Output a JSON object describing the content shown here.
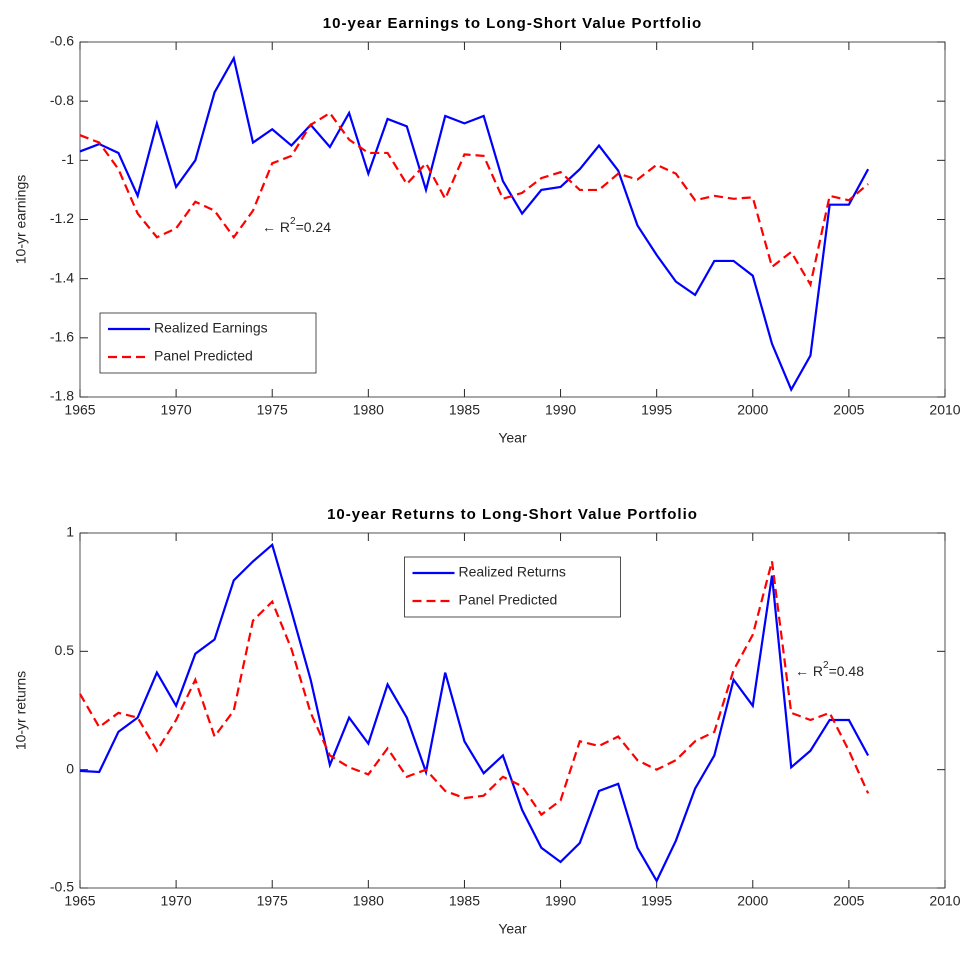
{
  "chart_data": [
    {
      "type": "line",
      "title": "10-year Earnings to Long-Short Value Portfolio",
      "xlabel": "Year",
      "ylabel": "10-yr earnings",
      "x": [
        1965,
        1966,
        1967,
        1968,
        1969,
        1970,
        1971,
        1972,
        1973,
        1974,
        1975,
        1976,
        1977,
        1978,
        1979,
        1980,
        1981,
        1982,
        1983,
        1984,
        1985,
        1986,
        1987,
        1988,
        1989,
        1990,
        1991,
        1992,
        1993,
        1994,
        1995,
        1996,
        1997,
        1998,
        1999,
        2000,
        2001,
        2002,
        2003,
        2004,
        2005,
        2006
      ],
      "series": [
        {
          "name": "Realized Earnings",
          "color": "#0000ff",
          "dash": "solid",
          "values": [
            -0.97,
            -0.945,
            -0.975,
            -1.12,
            -0.875,
            -1.09,
            -1.0,
            -0.77,
            -0.655,
            -0.94,
            -0.895,
            -0.95,
            -0.88,
            -0.955,
            -0.84,
            -1.045,
            -0.86,
            -0.885,
            -1.1,
            -0.85,
            -0.875,
            -0.85,
            -1.07,
            -1.18,
            -1.1,
            -1.09,
            -1.03,
            -0.95,
            -1.035,
            -1.22,
            -1.32,
            -1.41,
            -1.455,
            -1.34,
            -1.34,
            -1.39,
            -1.62,
            -1.775,
            -1.66,
            -1.15,
            -1.15,
            -1.03
          ]
        },
        {
          "name": "Panel Predicted",
          "color": "#ff0000",
          "dash": "dashed",
          "values": [
            -0.915,
            -0.94,
            -1.03,
            -1.18,
            -1.26,
            -1.23,
            -1.14,
            -1.17,
            -1.26,
            -1.17,
            -1.01,
            -0.985,
            -0.88,
            -0.84,
            -0.93,
            -0.975,
            -0.975,
            -1.08,
            -1.01,
            -1.13,
            -0.98,
            -0.985,
            -1.13,
            -1.11,
            -1.06,
            -1.04,
            -1.1,
            -1.1,
            -1.045,
            -1.065,
            -1.015,
            -1.045,
            -1.135,
            -1.12,
            -1.13,
            -1.125,
            -1.36,
            -1.31,
            -1.42,
            -1.12,
            -1.135,
            -1.08
          ]
        }
      ],
      "annotation": {
        "prefix": "← R",
        "sup": "2",
        "suffix": "=0.24"
      },
      "xlim": [
        1965,
        2010
      ],
      "xticks": [
        1965,
        1970,
        1975,
        1980,
        1985,
        1990,
        1995,
        2000,
        2005,
        2010
      ],
      "ylim": [
        -1.8,
        -0.6
      ],
      "yticks": [
        -1.8,
        -1.6,
        -1.4,
        -1.2,
        -1,
        -0.8,
        -0.6
      ],
      "grid": false,
      "legend": "lower left"
    },
    {
      "type": "line",
      "title": "10-year Returns to Long-Short Value Portfolio",
      "xlabel": "Year",
      "ylabel": "10-yr returns",
      "x": [
        1965,
        1966,
        1967,
        1968,
        1969,
        1970,
        1971,
        1972,
        1973,
        1974,
        1975,
        1976,
        1977,
        1978,
        1979,
        1980,
        1981,
        1982,
        1983,
        1984,
        1985,
        1986,
        1987,
        1988,
        1989,
        1990,
        1991,
        1992,
        1993,
        1994,
        1995,
        1996,
        1997,
        1998,
        1999,
        2000,
        2001,
        2002,
        2003,
        2004,
        2005,
        2006
      ],
      "series": [
        {
          "name": "Realized Returns",
          "color": "#0000ff",
          "dash": "solid",
          "values": [
            -0.005,
            -0.01,
            0.16,
            0.22,
            0.41,
            0.27,
            0.49,
            0.55,
            0.8,
            0.88,
            0.95,
            0.67,
            0.38,
            0.02,
            0.22,
            0.11,
            0.36,
            0.22,
            -0.01,
            0.41,
            0.12,
            -0.015,
            0.06,
            -0.17,
            -0.33,
            -0.39,
            -0.31,
            -0.09,
            -0.06,
            -0.33,
            -0.47,
            -0.3,
            -0.08,
            0.06,
            0.38,
            0.27,
            0.82,
            0.01,
            0.08,
            0.21,
            0.21,
            0.06
          ]
        },
        {
          "name": "Panel Predicted",
          "color": "#ff0000",
          "dash": "dashed",
          "values": [
            0.32,
            0.18,
            0.24,
            0.22,
            0.08,
            0.21,
            0.38,
            0.14,
            0.25,
            0.63,
            0.71,
            0.51,
            0.24,
            0.06,
            0.01,
            -0.02,
            0.09,
            -0.03,
            0.0,
            -0.09,
            -0.12,
            -0.11,
            -0.03,
            -0.07,
            -0.19,
            -0.13,
            0.12,
            0.1,
            0.14,
            0.04,
            0.0,
            0.04,
            0.12,
            0.16,
            0.42,
            0.57,
            0.88,
            0.24,
            0.21,
            0.24,
            0.08,
            -0.1
          ]
        }
      ],
      "annotation": {
        "prefix": "← R",
        "sup": "2",
        "suffix": "=0.48"
      },
      "xlim": [
        1965,
        2010
      ],
      "xticks": [
        1965,
        1970,
        1975,
        1980,
        1985,
        1990,
        1995,
        2000,
        2005,
        2010
      ],
      "ylim": [
        -0.5,
        1
      ],
      "yticks": [
        -0.5,
        0,
        0.5,
        1
      ],
      "grid": false,
      "legend": "upper center"
    }
  ]
}
